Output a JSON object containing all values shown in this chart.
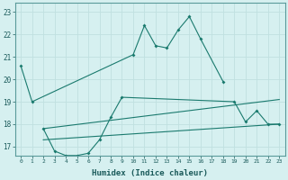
{
  "background_color": "#d6f0f0",
  "grid_color": "#c0e0e0",
  "line_color": "#1a7a6e",
  "x_label": "Humidex (Indice chaleur)",
  "x_ticks": [
    0,
    1,
    2,
    3,
    4,
    5,
    6,
    7,
    8,
    9,
    10,
    11,
    12,
    13,
    14,
    15,
    16,
    17,
    18,
    19,
    20,
    21,
    22,
    23
  ],
  "y_ticks": [
    17,
    18,
    19,
    20,
    21,
    22,
    23
  ],
  "ylim": [
    16.6,
    23.4
  ],
  "xlim": [
    -0.5,
    23.5
  ],
  "series": [
    {
      "x": [
        0,
        1,
        10,
        11,
        12,
        13,
        14,
        15,
        16,
        18
      ],
      "y": [
        20.6,
        19.0,
        21.1,
        22.4,
        21.5,
        21.4,
        22.2,
        22.8,
        21.8,
        19.9
      ],
      "marker": true
    },
    {
      "x": [
        2,
        3,
        4,
        5,
        6,
        7,
        8,
        9,
        19,
        20,
        21,
        22,
        23
      ],
      "y": [
        17.8,
        16.8,
        16.6,
        16.6,
        16.7,
        17.3,
        18.3,
        19.2,
        19.0,
        18.1,
        18.6,
        18.0,
        18.0
      ],
      "marker": true
    },
    {
      "x": [
        2,
        23
      ],
      "y": [
        17.8,
        19.1
      ],
      "marker": false
    },
    {
      "x": [
        2,
        23
      ],
      "y": [
        17.3,
        18.0
      ],
      "marker": false
    }
  ]
}
